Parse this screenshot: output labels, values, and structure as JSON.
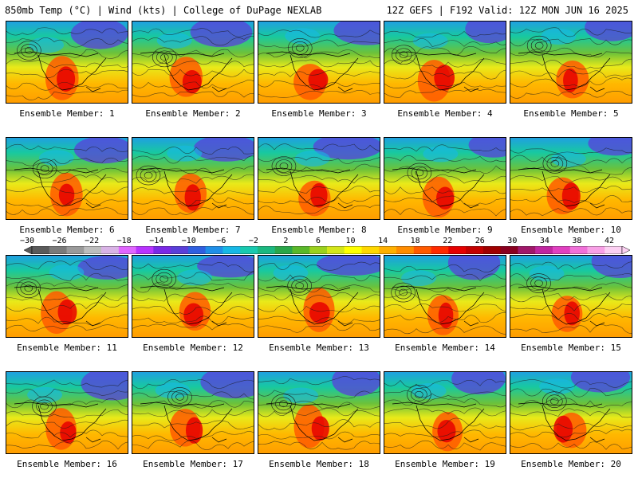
{
  "header": {
    "left": "850mb Temp (°C) | Wind (kts) | College of DuPage NEXLAB",
    "right": "12Z GEFS | F192 Valid: 12Z MON JUN 16 2025"
  },
  "members": [
    {
      "label": "Ensemble Member: 1"
    },
    {
      "label": "Ensemble Member: 2"
    },
    {
      "label": "Ensemble Member: 3"
    },
    {
      "label": "Ensemble Member: 4"
    },
    {
      "label": "Ensemble Member: 5"
    },
    {
      "label": "Ensemble Member: 6"
    },
    {
      "label": "Ensemble Member: 7"
    },
    {
      "label": "Ensemble Member: 8"
    },
    {
      "label": "Ensemble Member: 9"
    },
    {
      "label": "Ensemble Member: 10"
    },
    {
      "label": "Ensemble Member: 11"
    },
    {
      "label": "Ensemble Member: 12"
    },
    {
      "label": "Ensemble Member: 13"
    },
    {
      "label": "Ensemble Member: 14"
    },
    {
      "label": "Ensemble Member: 15"
    },
    {
      "label": "Ensemble Member: 16"
    },
    {
      "label": "Ensemble Member: 17"
    },
    {
      "label": "Ensemble Member: 18"
    },
    {
      "label": "Ensemble Member: 19"
    },
    {
      "label": "Ensemble Member: 20"
    }
  ],
  "colorbar": {
    "tick_labels": [
      "−30",
      "−26",
      "−22",
      "−18",
      "−14",
      "−10",
      "−6",
      "−2",
      "2",
      "6",
      "10",
      "14",
      "18",
      "22",
      "26",
      "30",
      "34",
      "38",
      "42"
    ],
    "colors": [
      "#5a5a5a",
      "#7a7a7a",
      "#9a9a9a",
      "#bdbdbd",
      "#d9b3e6",
      "#e066ff",
      "#b833ff",
      "#7a29e6",
      "#5a3fd9",
      "#2f5fe0",
      "#1f8fe8",
      "#17b8e6",
      "#18c9b0",
      "#1bb880",
      "#2aa64a",
      "#5ab82a",
      "#9bd11e",
      "#d4e61a",
      "#ffff00",
      "#ffd700",
      "#ffb000",
      "#ff8c00",
      "#ff5a00",
      "#ff2a00",
      "#e60000",
      "#c40000",
      "#a00000",
      "#8a0020",
      "#a0186a",
      "#c026a0",
      "#e040c0",
      "#f070d8",
      "#f8a0e6",
      "#fcd0f2"
    ]
  }
}
